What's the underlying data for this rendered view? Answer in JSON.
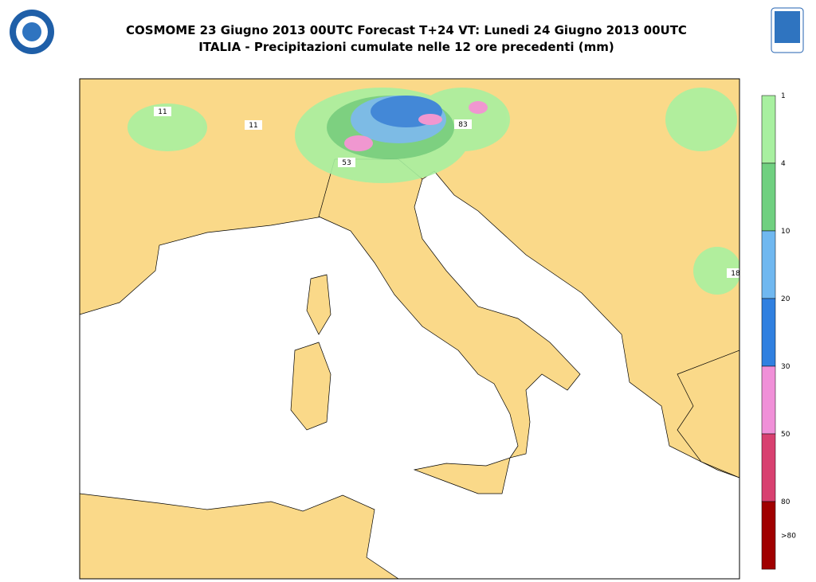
{
  "header": {
    "title": "COSMOME 23 Giugno 2013 00UTC Forecast T+24 VT: Lunedi 24 Giugno 2013 00UTC",
    "subtitle": "ITALIA - Precipitazioni cumulate nelle 12 ore precedenti (mm)"
  },
  "legend": {
    "levels": [
      1,
      4,
      10,
      20,
      30,
      50,
      80
    ],
    "last_label": ">80",
    "colors": [
      "#a8f0a0",
      "#70d080",
      "#70b8f0",
      "#3080e0",
      "#f090d8",
      "#d84070",
      "#a00000"
    ]
  },
  "map_labels": [
    11,
    11,
    53,
    83,
    18
  ]
}
